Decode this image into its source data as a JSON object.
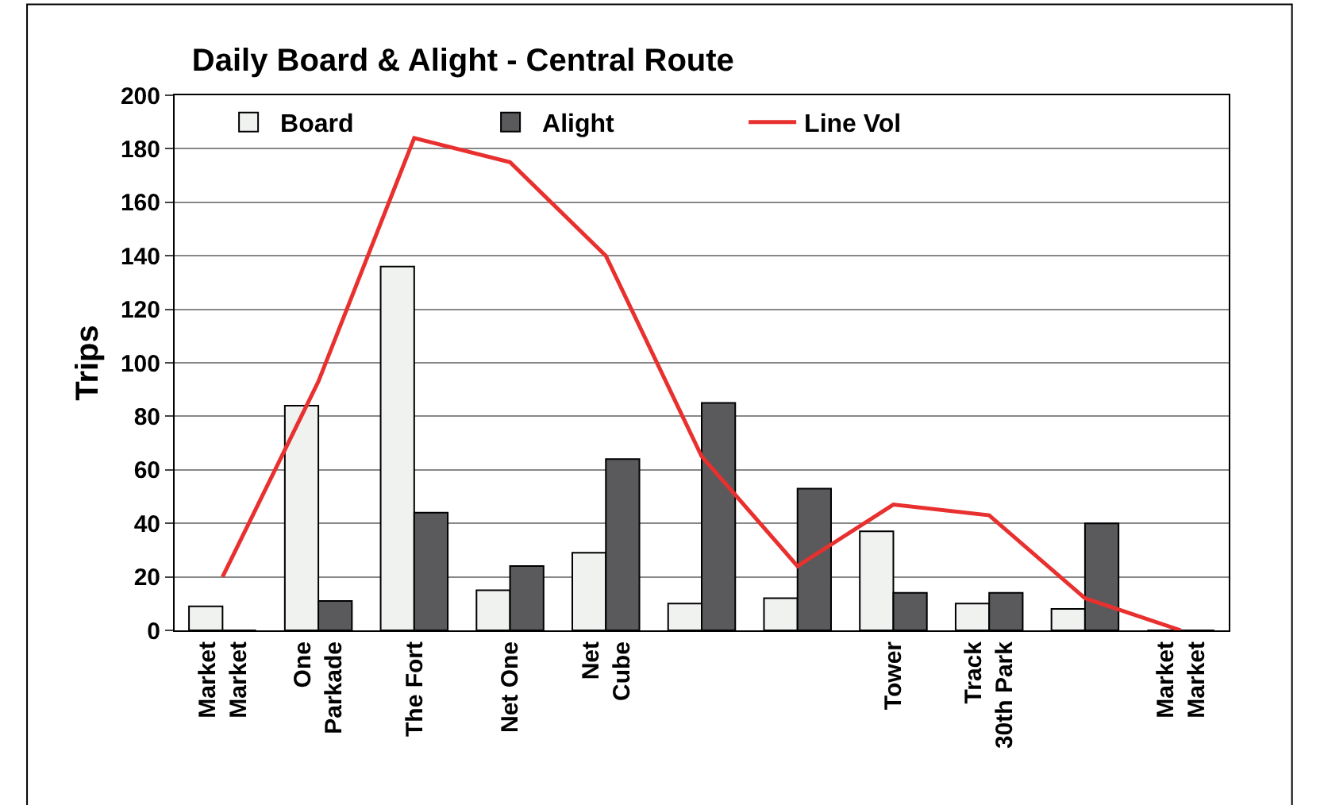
{
  "chart_data": {
    "type": "bar",
    "title": "Daily Board & Alight - Central Route",
    "ylabel": "Trips",
    "categories": [
      "Market\nMarket",
      "One\nParkade",
      "The Fort",
      "Net One",
      "Net\nCube",
      null,
      null,
      "Tower",
      "Track\n30th Park",
      null,
      "Market\nMarket"
    ],
    "series": [
      {
        "name": "Board",
        "color": "#f0f2f0",
        "values": [
          9,
          84,
          136,
          15,
          29,
          10,
          12,
          37,
          10,
          8,
          0
        ]
      },
      {
        "name": "Alight",
        "color": "#5a5a5c",
        "values": [
          0,
          11,
          44,
          24,
          64,
          85,
          53,
          14,
          14,
          40,
          0
        ]
      },
      {
        "name": "Line Vol",
        "type": "line",
        "color": "#e8302f",
        "values": [
          20,
          93,
          184,
          175,
          140,
          65,
          24,
          47,
          43,
          12,
          0
        ]
      }
    ],
    "ylim": [
      0,
      200
    ],
    "yticks": [
      0,
      20,
      40,
      60,
      80,
      100,
      120,
      140,
      160,
      180,
      200
    ],
    "grid": "y",
    "legend": "top left"
  }
}
